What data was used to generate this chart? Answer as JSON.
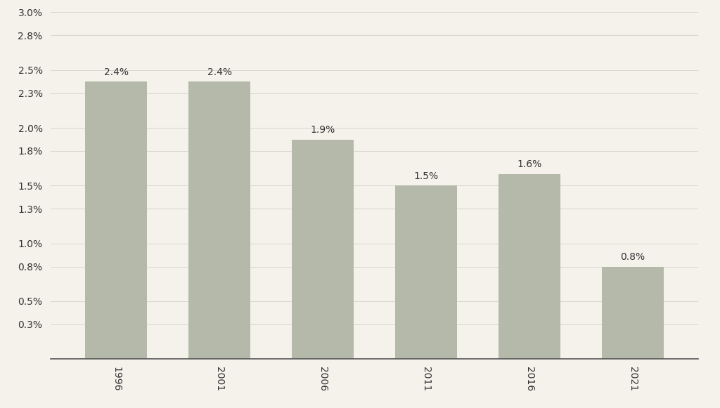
{
  "years": [
    "1996",
    "2001",
    "2006",
    "2011",
    "2016",
    "2021"
  ],
  "values": [
    2.4,
    2.4,
    1.9,
    1.5,
    1.6,
    0.8
  ],
  "bar_color": "#b5b9a9",
  "background_color": "#f5f2eb",
  "ylim": [
    0,
    3.0
  ],
  "yticks": [
    0.3,
    0.5,
    0.8,
    1.0,
    1.3,
    1.5,
    1.8,
    2.0,
    2.3,
    2.5,
    2.8,
    3.0
  ],
  "grid_color": "#d8d5ce",
  "label_fontsize": 10,
  "tick_fontsize": 10,
  "bar_width": 0.6
}
